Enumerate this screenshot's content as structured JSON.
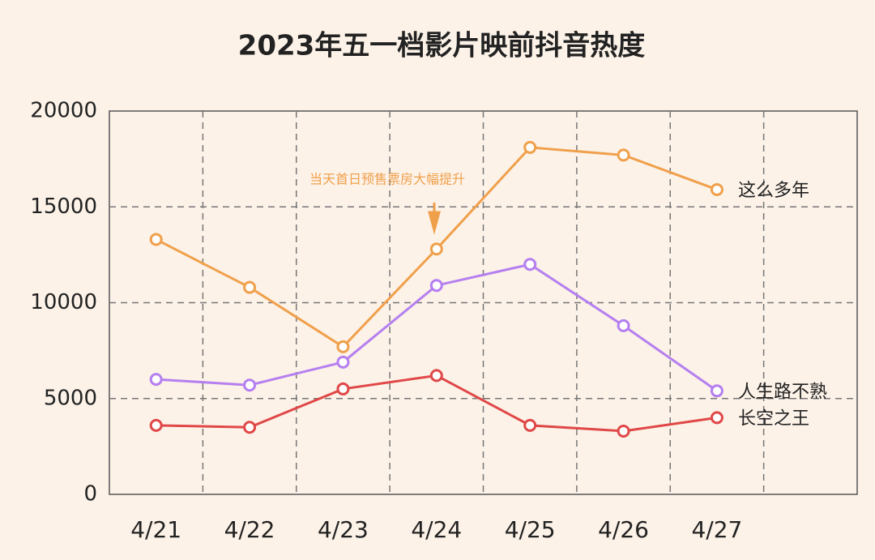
{
  "chart_data": {
    "type": "line",
    "title": "2023年五一档影片映前抖音热度",
    "categories": [
      "4/21",
      "4/22",
      "4/23",
      "4/24",
      "4/25",
      "4/26",
      "4/27"
    ],
    "series": [
      {
        "name": "这么多年",
        "color": "#f0a04b",
        "values": [
          13300,
          10800,
          7700,
          12800,
          18100,
          17700,
          15900
        ]
      },
      {
        "name": "人生路不熟",
        "color": "#b57ff0",
        "values": [
          6000,
          5700,
          6900,
          10900,
          12000,
          8800,
          5400
        ]
      },
      {
        "name": "长空之王",
        "color": "#e04848",
        "values": [
          3600,
          3500,
          5500,
          6200,
          3600,
          3300,
          4000
        ]
      }
    ],
    "annotation": "当天首日预售票房大幅提升",
    "ylim": [
      0,
      20000
    ],
    "yticks": [
      0,
      5000,
      10000,
      15000,
      20000
    ],
    "grid": true
  }
}
